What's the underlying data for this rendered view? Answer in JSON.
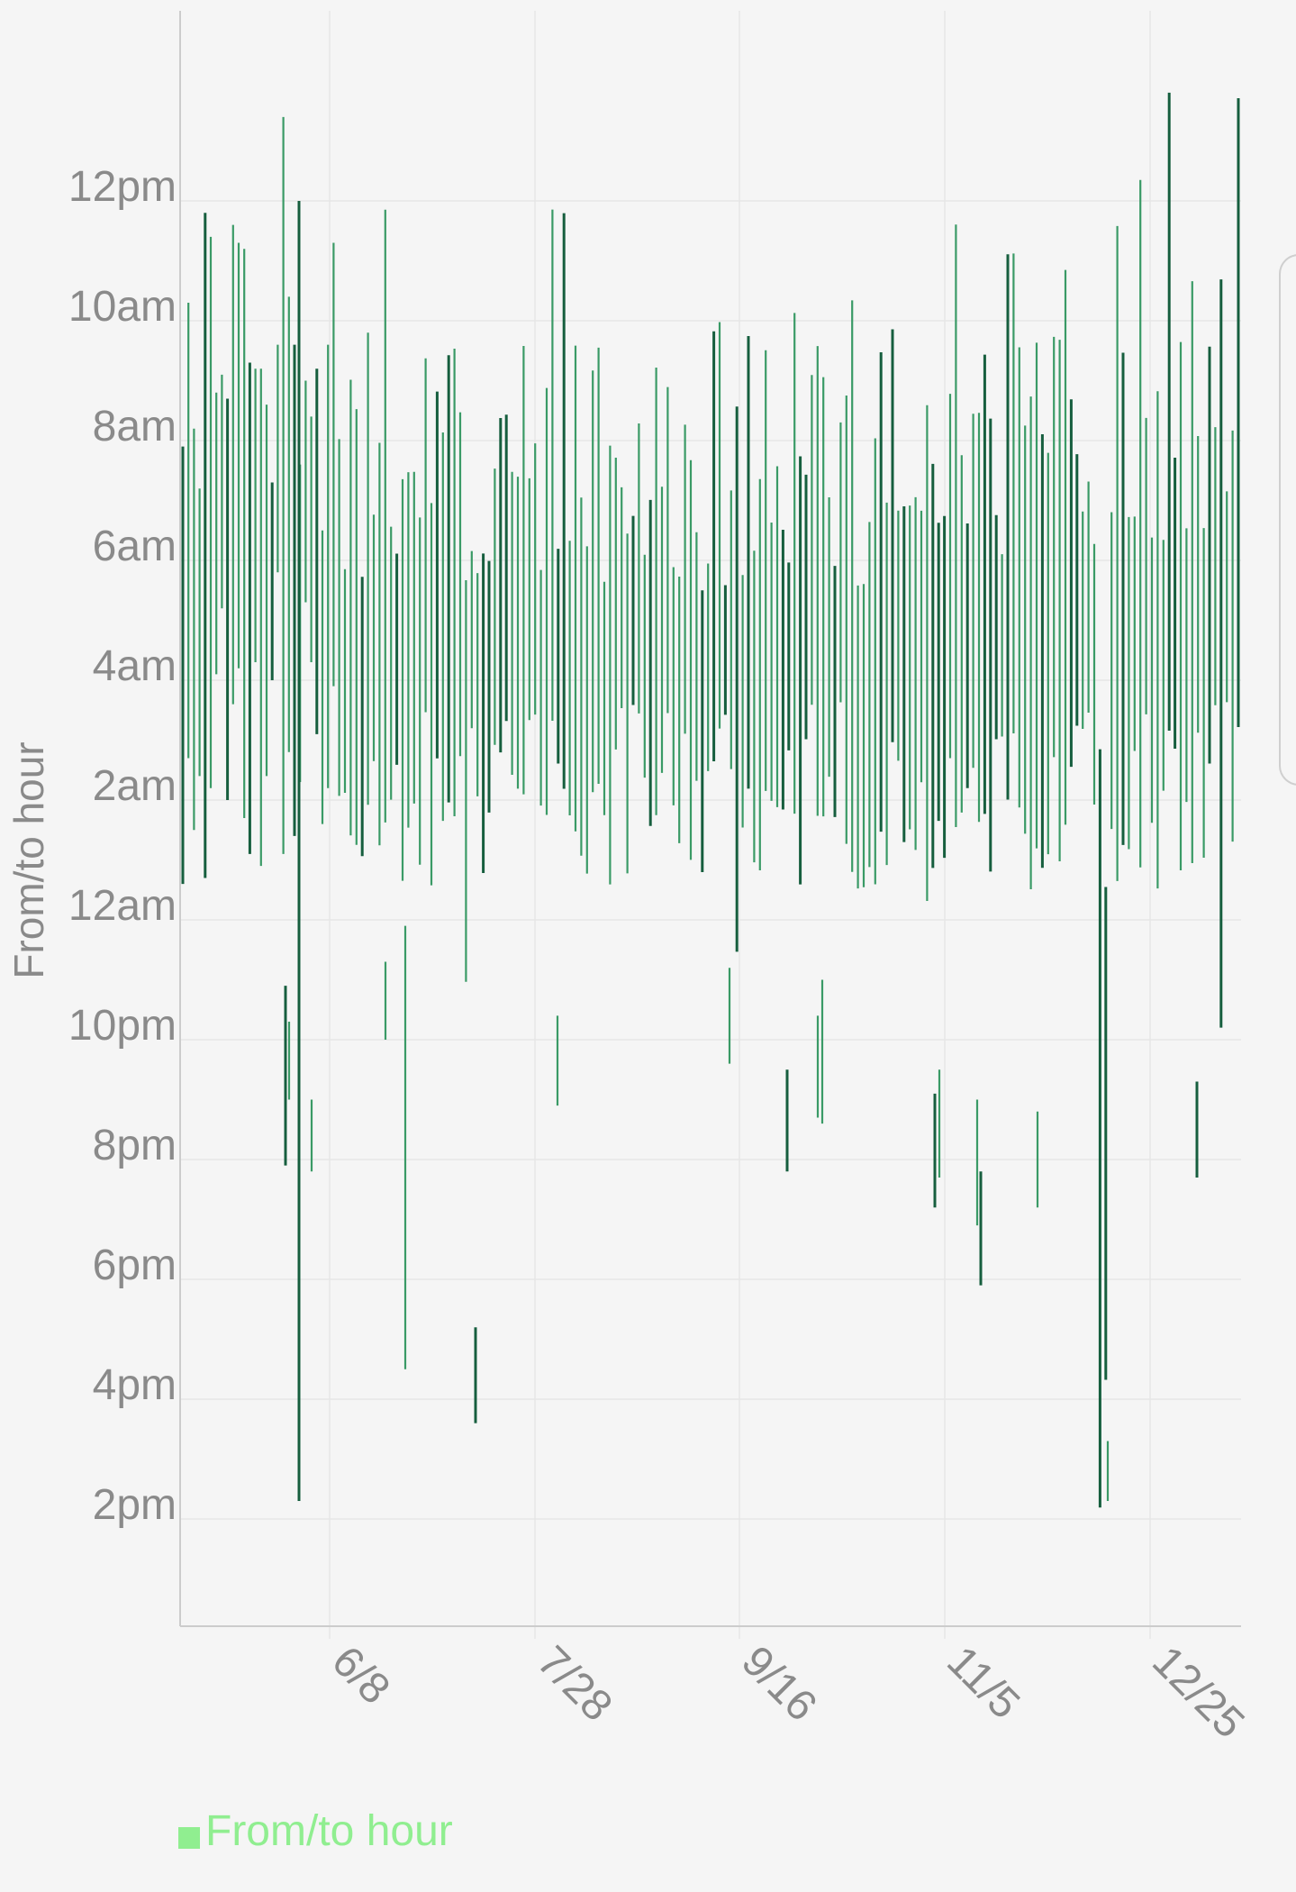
{
  "chart_data": {
    "type": "range-bar",
    "ylabel": "From/to hour",
    "xlabel": "",
    "y_axis_note": "hours of day (0-24, inverted so late-morning at top)",
    "y_ticks": [
      "2pm",
      "4pm",
      "6pm",
      "8pm",
      "10pm",
      "12am",
      "2am",
      "4am",
      "6am",
      "8am",
      "10am",
      "12pm"
    ],
    "x_ticks": [
      "6/8",
      "7/28",
      "9/16",
      "11/5",
      "12/25"
    ],
    "legend": [
      {
        "label": "From/to hour",
        "color": "#90ee90"
      }
    ],
    "colors": {
      "bar_light": "#3a9a66",
      "bar_dark": "#165e3e",
      "legend": "#90ee90",
      "grid": "#e6e6e6",
      "axis": "#cccccc",
      "text": "#8a8a8a"
    },
    "series": [
      {
        "name": "From/to hour",
        "ranges": [
          [
            "5/13",
            0.6,
            7.9
          ],
          [
            "5/14",
            2.7,
            10.3
          ],
          [
            "5/15",
            1.5,
            8.2
          ],
          [
            "5/16",
            2.4,
            7.2
          ],
          [
            "5/17",
            0.7,
            11.8
          ],
          [
            "5/18",
            2.2,
            11.4
          ],
          [
            "5/19",
            4.1,
            8.8
          ],
          [
            "5/20",
            5.2,
            9.1
          ],
          [
            "5/21",
            2.0,
            8.7
          ],
          [
            "5/22",
            3.6,
            11.6
          ],
          [
            "5/23",
            4.2,
            11.3
          ],
          [
            "5/24",
            1.7,
            11.2
          ],
          [
            "5/25",
            1.1,
            9.3
          ],
          [
            "5/26",
            4.3,
            9.2
          ],
          [
            "5/27",
            0.9,
            9.2
          ],
          [
            "5/28",
            2.4,
            8.6
          ],
          [
            "5/29",
            4.0,
            7.3
          ],
          [
            "5/30",
            5.8,
            9.6
          ],
          [
            "5/31",
            1.1,
            13.4
          ],
          [
            "6/1",
            2.8,
            10.4
          ],
          [
            "6/2",
            1.4,
            9.6
          ],
          [
            "6/3",
            2.3,
            7.6
          ],
          [
            "6/4",
            5.3,
            9.0
          ],
          [
            "6/5",
            4.3,
            8.4
          ],
          [
            "6/6",
            3.1,
            9.2
          ],
          [
            "6/7",
            1.6,
            6.5
          ],
          [
            "6/8",
            2.2,
            9.6
          ],
          [
            "6/9",
            3.9,
            11.3
          ]
        ]
      }
    ]
  }
}
